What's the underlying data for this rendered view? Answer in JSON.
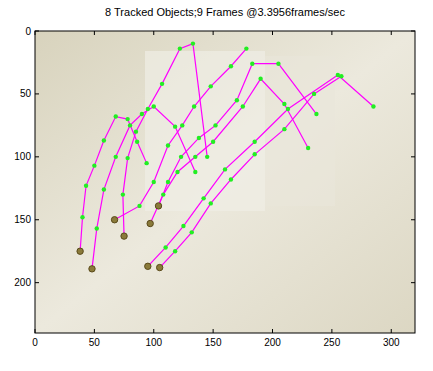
{
  "chart_data": {
    "type": "line",
    "title": "8 Tracked Objects;9 Frames @3.3956frames/sec",
    "xlim": [
      0,
      320
    ],
    "ylim": [
      240,
      0
    ],
    "xticks": [
      0,
      50,
      100,
      150,
      200,
      250,
      300
    ],
    "yticks": [
      0,
      50,
      100,
      150,
      200
    ],
    "color": "#ff00ff",
    "marker": "dot",
    "line_style": "solid",
    "grid": false,
    "series": [
      {
        "x": [
          38,
          40,
          43,
          50,
          58,
          68,
          78,
          86,
          94
        ],
        "values": [
          175,
          148,
          123,
          107,
          87,
          68,
          70,
          88,
          105
        ]
      },
      {
        "x": [
          48,
          52,
          58,
          68,
          80,
          90,
          100,
          118,
          135
        ],
        "values": [
          189,
          157,
          126,
          100,
          75,
          66,
          60,
          76,
          112
        ]
      },
      {
        "x": [
          75,
          74,
          78,
          85,
          95,
          107,
          122,
          133,
          145
        ],
        "values": [
          163,
          130,
          101,
          80,
          62,
          42,
          14,
          10,
          100
        ]
      },
      {
        "x": [
          67,
          88,
          100,
          112,
          124,
          134,
          148,
          165,
          178
        ],
        "values": [
          150,
          139,
          120,
          91,
          75,
          60,
          44,
          28,
          14
        ]
      },
      {
        "x": [
          97,
          108,
          120,
          135,
          150,
          175,
          190,
          210,
          230
        ],
        "values": [
          153,
          130,
          112,
          100,
          88,
          60,
          38,
          58,
          93
        ]
      },
      {
        "x": [
          104,
          112,
          123,
          138,
          152,
          170,
          183,
          205,
          237
        ],
        "values": [
          139,
          120,
          100,
          85,
          75,
          55,
          26,
          26,
          66
        ]
      },
      {
        "x": [
          95,
          110,
          125,
          142,
          160,
          185,
          213,
          255,
          285
        ],
        "values": [
          187,
          172,
          155,
          133,
          110,
          88,
          62,
          35,
          60
        ]
      },
      {
        "x": [
          105,
          118,
          132,
          148,
          165,
          185,
          210,
          235,
          258
        ],
        "values": [
          188,
          175,
          160,
          137,
          118,
          98,
          78,
          50,
          36
        ]
      }
    ]
  }
}
